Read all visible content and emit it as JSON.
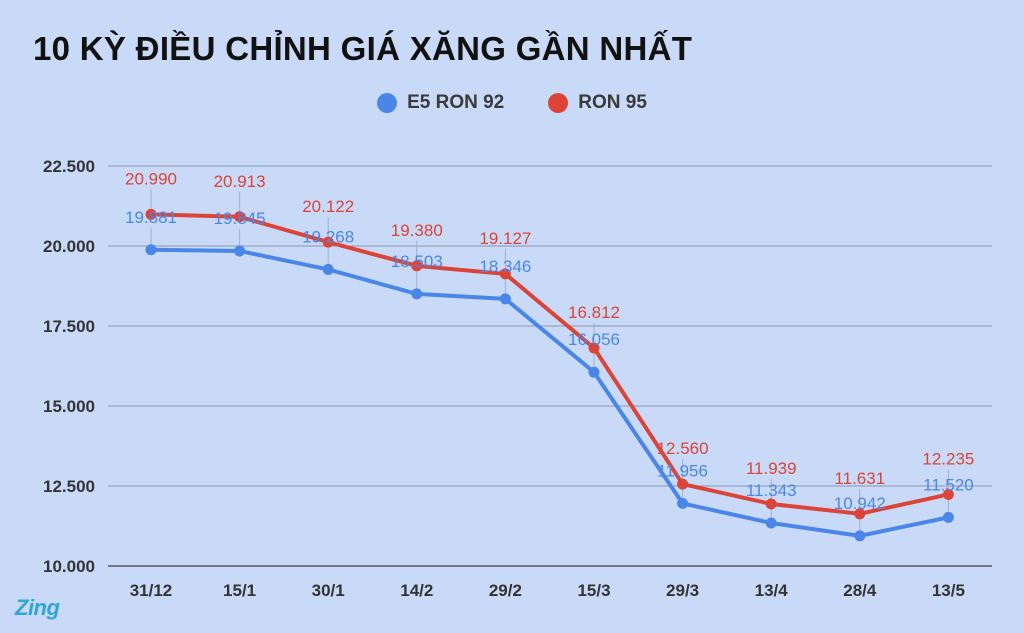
{
  "chart_data": {
    "type": "line",
    "title": "10 KỲ ĐIỀU CHỈNH GIÁ XĂNG GẦN NHẤT",
    "categories": [
      "31/12",
      "15/1",
      "30/1",
      "14/2",
      "29/2",
      "15/3",
      "29/3",
      "13/4",
      "28/4",
      "13/5"
    ],
    "series": [
      {
        "name": "E5 RON 92",
        "color": "#4a86e8",
        "values": [
          19881,
          19845,
          19268,
          18503,
          18346,
          16056,
          11956,
          11343,
          10942,
          11520
        ],
        "labels": [
          "19.881",
          "19.845",
          "19.268",
          "18.503",
          "18.346",
          "16.056",
          "11.956",
          "11.343",
          "10.942",
          "11.520"
        ]
      },
      {
        "name": "RON 95",
        "color": "#db4437",
        "values": [
          20990,
          20913,
          20122,
          19380,
          19127,
          16812,
          12560,
          11939,
          11631,
          12235
        ],
        "labels": [
          "20.990",
          "20.913",
          "20.122",
          "19.380",
          "19.127",
          "16.812",
          "12.560",
          "11.939",
          "11.631",
          "12.235"
        ]
      }
    ],
    "y_ticks": [
      {
        "value": 10000,
        "label": "10.000"
      },
      {
        "value": 12500,
        "label": "12.500"
      },
      {
        "value": 15000,
        "label": "15.000"
      },
      {
        "value": 17500,
        "label": "17.500"
      },
      {
        "value": 20000,
        "label": "20.000"
      },
      {
        "value": 22500,
        "label": "22.500"
      }
    ],
    "ylim": [
      10000,
      22500
    ],
    "grid": true,
    "legend_position": "top-center",
    "xlabel": "",
    "ylabel": ""
  },
  "watermark": "Zing"
}
